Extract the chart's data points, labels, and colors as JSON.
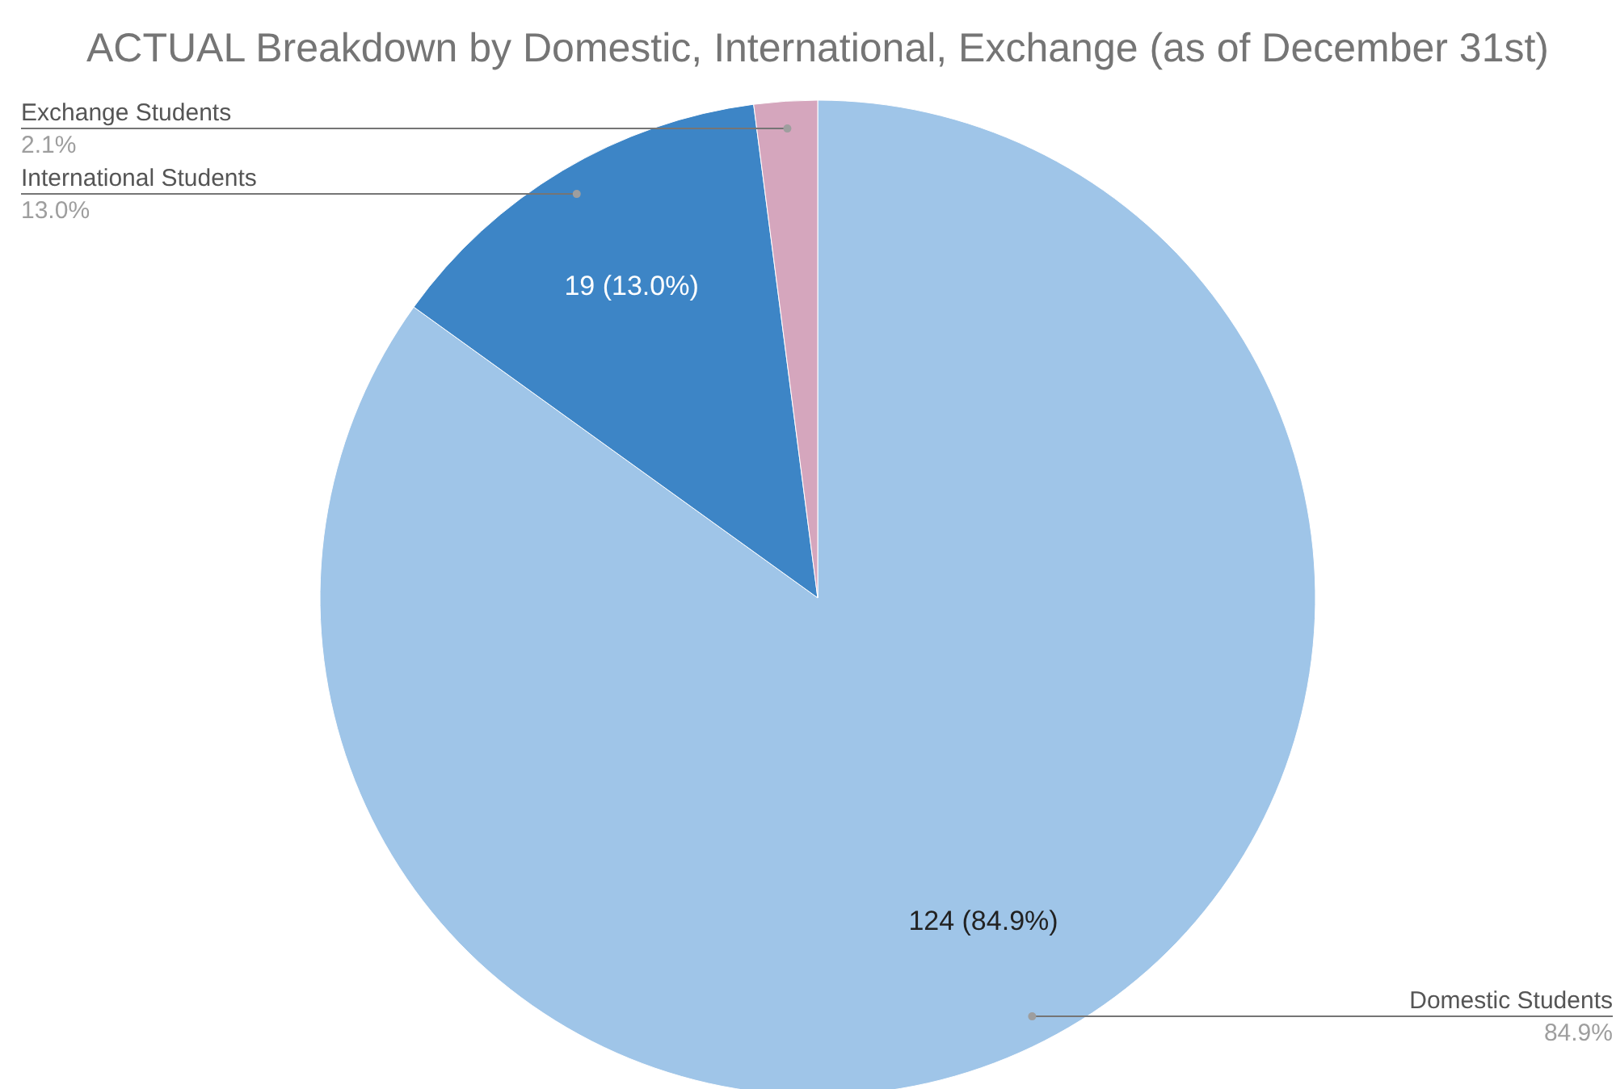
{
  "chart_data": {
    "type": "pie",
    "title": "ACTUAL Breakdown by Domestic, International, Exchange (as of December 31st)",
    "categories": [
      "Domestic Students",
      "International Students",
      "Exchange Students"
    ],
    "values": [
      124,
      19,
      3
    ],
    "colors": [
      "#9fc5e8",
      "#3d85c6",
      "#d5a6bd"
    ],
    "value_labels": [
      "124 (84.9%)",
      "19 (13.0%)",
      null
    ],
    "annotations": [
      "84.9%",
      "13.0%",
      "2.1%"
    ],
    "legend": false
  }
}
